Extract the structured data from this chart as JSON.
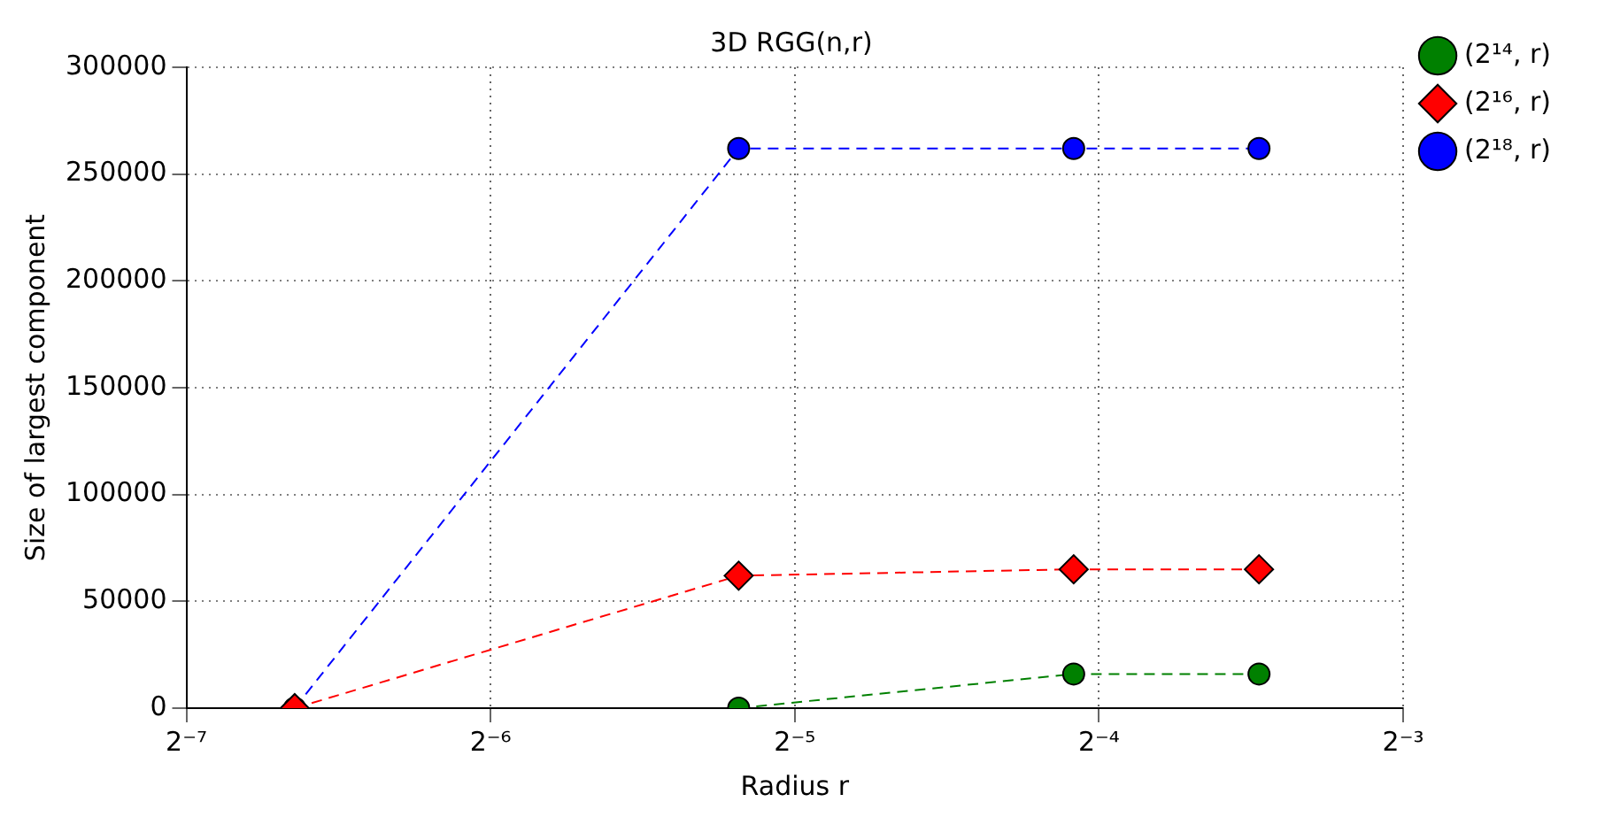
{
  "chart_data": {
    "type": "line",
    "title": "3D RGG(n,r)",
    "xlabel": "Radius r",
    "ylabel": "Size of largest component",
    "log": "x",
    "x": [
      0.01,
      0.0275,
      0.059,
      0.09
    ],
    "series": [
      {
        "name": "(2¹⁴, r)",
        "color": "#008000",
        "marker": "circle",
        "values": [
          null,
          0,
          16000,
          16000
        ]
      },
      {
        "name": "(2¹⁶, r)",
        "color": "#ff0000",
        "marker": "diamond",
        "values": [
          0,
          62000,
          65000,
          65000
        ]
      },
      {
        "name": "(2¹⁸, r)",
        "color": "#0000ff",
        "marker": "circle",
        "values": [
          0,
          262000,
          262000,
          262000
        ]
      }
    ],
    "xlim": [
      0.0078125,
      0.125
    ],
    "xticks": [
      {
        "value": 0.0078125,
        "label": "2⁻⁷"
      },
      {
        "value": 0.015625,
        "label": "2⁻⁶"
      },
      {
        "value": 0.03125,
        "label": "2⁻⁵"
      },
      {
        "value": 0.0625,
        "label": "2⁻⁴"
      },
      {
        "value": 0.125,
        "label": "2⁻³"
      }
    ],
    "ylim": [
      0,
      300000
    ],
    "yticks": [
      0,
      50000,
      100000,
      150000,
      200000,
      250000,
      300000
    ],
    "grid": true,
    "legend": "top right",
    "line_style": "dashed"
  }
}
